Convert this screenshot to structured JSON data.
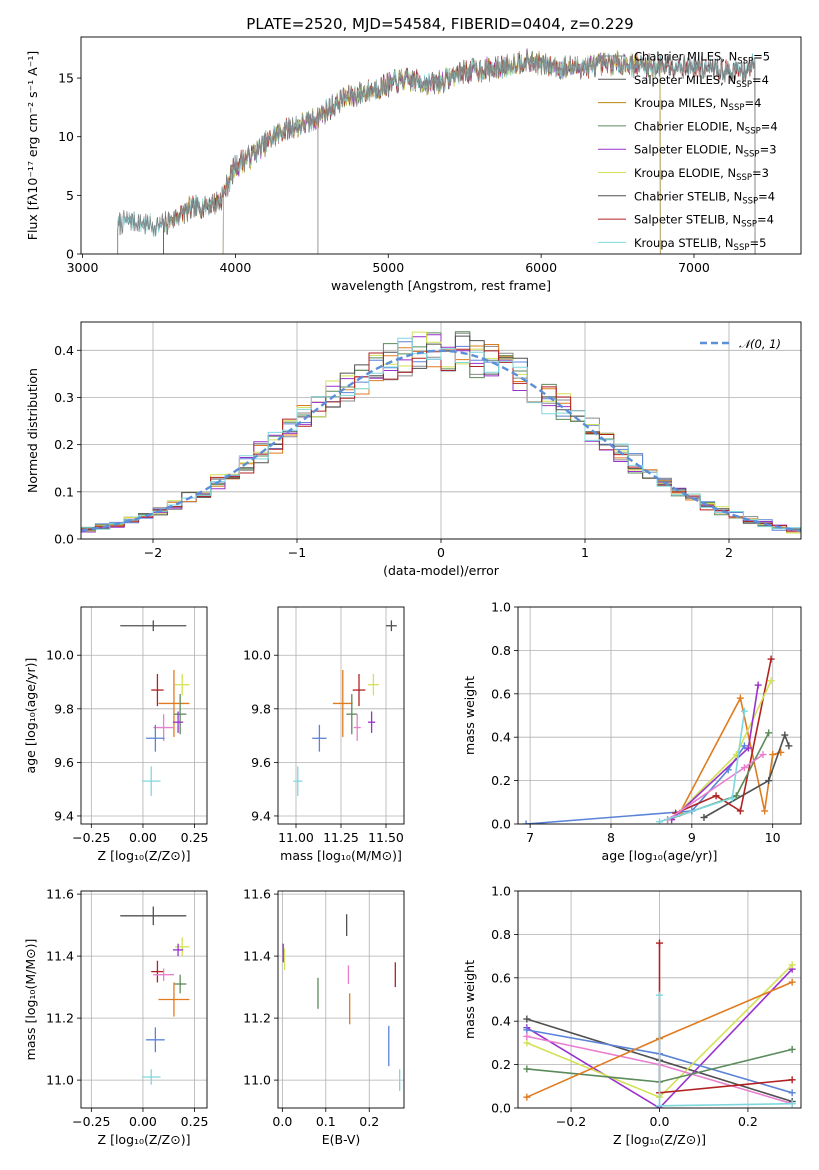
{
  "title": "PLATE=2520, MJD=54584, FIBERID=0404, z=0.229",
  "colors": {
    "Chabrier MILES": "#808080",
    "Salpeter MILES": "#555555",
    "Kroupa MILES": "#b8860b",
    "Chabrier ELODIE": "#5b8a5b",
    "Salpeter ELODIE": "#9932cc",
    "Kroupa ELODIE": "#d4e157",
    "Chabrier STELIB": "#505050",
    "Salpeter STELIB": "#b22222",
    "Kroupa STELIB": "#7fd8e0",
    "blue": "#5b84d8",
    "orange": "#e07b1f",
    "pink": "#e87fcf",
    "normal_curve": "#5b8fd8",
    "grid": "#b0b0b0"
  },
  "chart_data": [
    {
      "id": "spectrum",
      "type": "line",
      "title": "PLATE=2520, MJD=54584, FIBERID=0404, z=0.229",
      "xlabel": "wavelength [Angstrom, rest frame]",
      "ylabel": "Flux [fλ10⁻¹⁷ erg cm⁻² s⁻¹ A⁻¹]",
      "xlim": [
        2990,
        7700
      ],
      "ylim": [
        0,
        18.5
      ],
      "xticks": [
        3000,
        4000,
        5000,
        6000,
        7000
      ],
      "yticks": [
        0,
        5,
        10,
        15
      ],
      "grid": false,
      "legend_position": "top-right",
      "continuum": {
        "x": [
          3230,
          3300,
          3500,
          3700,
          3900,
          4000,
          4100,
          4300,
          4500,
          4700,
          4900,
          5100,
          5300,
          5500,
          5700,
          5900,
          6100,
          6300,
          6500,
          6700,
          6900,
          7100,
          7300,
          7400
        ],
        "y": [
          2.6,
          2.9,
          2.3,
          3.8,
          4.5,
          7.5,
          8.4,
          10.5,
          11.3,
          13.2,
          14.0,
          14.9,
          14.5,
          15.6,
          15.8,
          16.5,
          15.9,
          16.0,
          16.3,
          16.0,
          16.1,
          15.8,
          15.5,
          16.2
        ]
      },
      "series": [
        {
          "name": "Chabrier MILES, N_SSP=5",
          "label": "Chabrier MILES, N",
          "sub": "SSP",
          "tail": "=5",
          "start": 3230,
          "end": 7400
        },
        {
          "name": "Salpeter MILES, N_SSP=4",
          "label": "Salpeter MILES, N",
          "sub": "SSP",
          "tail": "=4",
          "start": 3530,
          "end": 7400
        },
        {
          "name": "Kroupa MILES, N_SSP=4",
          "label": "Kroupa MILES, N",
          "sub": "SSP",
          "tail": "=4",
          "start": 3530,
          "end": 6780
        },
        {
          "name": "Chabrier ELODIE, N_SSP=4",
          "label": "Chabrier ELODIE, N",
          "sub": "SSP",
          "tail": "=4",
          "start": 3920,
          "end": 6780
        },
        {
          "name": "Salpeter ELODIE, N_SSP=3",
          "label": "Salpeter ELODIE, N",
          "sub": "SSP",
          "tail": "=3",
          "start": 3920,
          "end": 6780
        },
        {
          "name": "Kroupa ELODIE, N_SSP=3",
          "label": "Kroupa ELODIE, N",
          "sub": "SSP",
          "tail": "=3",
          "start": 3920,
          "end": 6780
        },
        {
          "name": "Chabrier STELIB, N_SSP=4",
          "label": "Chabrier STELIB, N",
          "sub": "SSP",
          "tail": "=4",
          "start": 3230,
          "end": 7400
        },
        {
          "name": "Salpeter STELIB, N_SSP=4",
          "label": "Salpeter STELIB, N",
          "sub": "SSP",
          "tail": "=4",
          "start": 3530,
          "end": 7400
        },
        {
          "name": "Kroupa STELIB, N_SSP=5",
          "label": "Kroupa STELIB, N",
          "sub": "SSP",
          "tail": "=5",
          "start": 3230,
          "end": 7400
        }
      ]
    },
    {
      "id": "residuals",
      "type": "histogram",
      "xlabel": "(data-model)/error",
      "ylabel": "Normed distribution",
      "xlim": [
        -2.5,
        2.5
      ],
      "ylim": [
        0,
        0.46
      ],
      "xticks": [
        -2,
        -1,
        0,
        1,
        2
      ],
      "yticks": [
        0.0,
        0.1,
        0.2,
        0.3,
        0.4
      ],
      "grid": true,
      "legend_position": "top-right",
      "reference": {
        "name": "N(0,1)",
        "label": "𝒩(0, 1)",
        "mu": 0,
        "sigma": 1
      },
      "bins": {
        "start": -2.5,
        "width": 0.1,
        "count": 50
      }
    },
    {
      "id": "age_vs_Z",
      "type": "scatter",
      "xlabel": "Z [log₁₀(Z/Z⊙)]",
      "ylabel": "age  [log₁₀(age/yr)]",
      "xlim": [
        -0.3,
        0.31
      ],
      "ylim": [
        9.37,
        10.18
      ],
      "xticks": [
        -0.25,
        0.0,
        0.25
      ],
      "yticks": [
        9.4,
        9.6,
        9.8,
        10.0
      ],
      "grid": true,
      "points": [
        {
          "c": "Chabrier STELIB",
          "x": 0.05,
          "y": 10.11,
          "xe": 0.32,
          "ye": 0.04
        },
        {
          "c": "Salpeter STELIB",
          "x": 0.07,
          "y": 9.87,
          "xe": 0.06,
          "ye": 0.12
        },
        {
          "c": "Kroupa ELODIE",
          "x": 0.19,
          "y": 9.89,
          "xe": 0.07,
          "ye": 0.08
        },
        {
          "c": "orange",
          "x": 0.15,
          "y": 9.82,
          "xe": 0.15,
          "ye": 0.25
        },
        {
          "c": "Chabrier ELODIE",
          "x": 0.18,
          "y": 9.78,
          "xe": 0.06,
          "ye": 0.15
        },
        {
          "c": "Salpeter ELODIE",
          "x": 0.17,
          "y": 9.75,
          "xe": 0.05,
          "ye": 0.08
        },
        {
          "c": "pink",
          "x": 0.1,
          "y": 9.73,
          "xe": 0.1,
          "ye": 0.1
        },
        {
          "c": "blue",
          "x": 0.06,
          "y": 9.69,
          "xe": 0.09,
          "ye": 0.1
        },
        {
          "c": "Kroupa STELIB",
          "x": 0.04,
          "y": 9.53,
          "xe": 0.09,
          "ye": 0.11
        }
      ]
    },
    {
      "id": "age_vs_mass",
      "type": "scatter",
      "xlabel": "mass [log₁₀(M/M⊙)]",
      "ylabel": "",
      "xlim": [
        10.9,
        11.6
      ],
      "ylim": [
        9.37,
        10.18
      ],
      "xticks": [
        11.0,
        11.25,
        11.5
      ],
      "yticks": [
        9.4,
        9.6,
        9.8,
        10.0
      ],
      "grid": true,
      "points": [
        {
          "c": "Chabrier STELIB",
          "x": 11.53,
          "y": 10.11,
          "xe": 0.06,
          "ye": 0.04
        },
        {
          "c": "Salpeter STELIB",
          "x": 11.35,
          "y": 9.87,
          "xe": 0.07,
          "ye": 0.12
        },
        {
          "c": "Kroupa ELODIE",
          "x": 11.43,
          "y": 9.89,
          "xe": 0.06,
          "ye": 0.08
        },
        {
          "c": "orange",
          "x": 11.26,
          "y": 9.82,
          "xe": 0.11,
          "ye": 0.25
        },
        {
          "c": "Chabrier ELODIE",
          "x": 11.31,
          "y": 9.78,
          "xe": 0.06,
          "ye": 0.15
        },
        {
          "c": "Salpeter ELODIE",
          "x": 11.42,
          "y": 9.75,
          "xe": 0.04,
          "ye": 0.08
        },
        {
          "c": "pink",
          "x": 11.34,
          "y": 9.73,
          "xe": 0.04,
          "ye": 0.1
        },
        {
          "c": "blue",
          "x": 11.13,
          "y": 9.69,
          "xe": 0.08,
          "ye": 0.1
        },
        {
          "c": "Kroupa STELIB",
          "x": 11.01,
          "y": 9.53,
          "xe": 0.05,
          "ye": 0.11
        }
      ]
    },
    {
      "id": "mass_weight_vs_age",
      "type": "line",
      "xlabel": "age  [log₁₀(age/yr)]",
      "ylabel": "mass weight",
      "xlim": [
        6.85,
        10.35
      ],
      "ylim": [
        0,
        1
      ],
      "xticks": [
        7,
        8,
        9,
        10
      ],
      "yticks": [
        0.0,
        0.2,
        0.4,
        0.6,
        0.8,
        1.0
      ],
      "grid": true,
      "series": [
        {
          "c": "blue",
          "x": [
            6.95,
            9.0,
            9.45,
            9.65
          ],
          "y": [
            0.0,
            0.06,
            0.25,
            0.36
          ]
        },
        {
          "c": "orange",
          "x": [
            8.85,
            9.6,
            9.9,
            10.0,
            10.1
          ],
          "y": [
            0.05,
            0.58,
            0.06,
            0.32,
            0.33
          ]
        },
        {
          "c": "Chabrier STELIB",
          "x": [
            9.15,
            9.95,
            10.15,
            10.2
          ],
          "y": [
            0.03,
            0.2,
            0.41,
            0.36
          ]
        },
        {
          "c": "Salpeter STELIB",
          "x": [
            8.8,
            9.3,
            9.6,
            9.98
          ],
          "y": [
            0.05,
            0.13,
            0.06,
            0.76
          ]
        },
        {
          "c": "Kroupa ELODIE",
          "x": [
            8.75,
            9.55,
            9.98
          ],
          "y": [
            0.02,
            0.32,
            0.66
          ]
        },
        {
          "c": "Chabrier ELODIE",
          "x": [
            8.7,
            9.55,
            9.95
          ],
          "y": [
            0.02,
            0.13,
            0.42
          ]
        },
        {
          "c": "Salpeter ELODIE",
          "x": [
            8.75,
            9.7,
            9.82
          ],
          "y": [
            0.02,
            0.35,
            0.64
          ]
        },
        {
          "c": "pink",
          "x": [
            8.7,
            9.65,
            9.88
          ],
          "y": [
            0.02,
            0.26,
            0.32
          ]
        },
        {
          "c": "Kroupa STELIB",
          "x": [
            8.6,
            9.5,
            9.65
          ],
          "y": [
            0.01,
            0.12,
            0.52
          ]
        }
      ]
    },
    {
      "id": "mass_vs_Z",
      "type": "scatter",
      "xlabel": "Z [log₁₀(Z/Z⊙)]",
      "ylabel": "mass [log₁₀(M/M⊙)]",
      "xlim": [
        -0.3,
        0.31
      ],
      "ylim": [
        10.91,
        11.61
      ],
      "xticks": [
        -0.25,
        0.0,
        0.25
      ],
      "yticks": [
        11.0,
        11.2,
        11.4,
        11.6
      ],
      "grid": true,
      "points": [
        {
          "c": "Chabrier STELIB",
          "x": 0.05,
          "y": 11.53,
          "xe": 0.32,
          "ye": 0.06
        },
        {
          "c": "Kroupa ELODIE",
          "x": 0.19,
          "y": 11.43,
          "xe": 0.07,
          "ye": 0.06
        },
        {
          "c": "Salpeter ELODIE",
          "x": 0.17,
          "y": 11.42,
          "xe": 0.05,
          "ye": 0.04
        },
        {
          "c": "Salpeter STELIB",
          "x": 0.07,
          "y": 11.35,
          "xe": 0.06,
          "ye": 0.07
        },
        {
          "c": "pink",
          "x": 0.1,
          "y": 11.34,
          "xe": 0.1,
          "ye": 0.04
        },
        {
          "c": "Chabrier ELODIE",
          "x": 0.18,
          "y": 11.31,
          "xe": 0.06,
          "ye": 0.06
        },
        {
          "c": "orange",
          "x": 0.15,
          "y": 11.26,
          "xe": 0.15,
          "ye": 0.11
        },
        {
          "c": "blue",
          "x": 0.06,
          "y": 11.13,
          "xe": 0.09,
          "ye": 0.08
        },
        {
          "c": "Kroupa STELIB",
          "x": 0.04,
          "y": 11.01,
          "xe": 0.09,
          "ye": 0.05
        }
      ]
    },
    {
      "id": "mass_vs_EBV",
      "type": "scatter",
      "xlabel": "E(B-V)",
      "ylabel": "",
      "xlim": [
        -0.01,
        0.28
      ],
      "ylim": [
        10.91,
        11.61
      ],
      "xticks": [
        0.0,
        0.1,
        0.2
      ],
      "yticks": [
        11.0,
        11.2,
        11.4,
        11.6
      ],
      "grid": true,
      "points": [
        {
          "c": "Kroupa ELODIE",
          "x": 0.005,
          "y": 11.39,
          "xe": 0,
          "ye": 0.07
        },
        {
          "c": "Salpeter ELODIE",
          "x": 0.002,
          "y": 11.41,
          "xe": 0,
          "ye": 0.06
        },
        {
          "c": "Chabrier ELODIE",
          "x": 0.082,
          "y": 11.28,
          "xe": 0,
          "ye": 0.1
        },
        {
          "c": "Chabrier STELIB",
          "x": 0.148,
          "y": 11.5,
          "xe": 0,
          "ye": 0.07
        },
        {
          "c": "pink",
          "x": 0.152,
          "y": 11.34,
          "xe": 0,
          "ye": 0.06
        },
        {
          "c": "orange",
          "x": 0.155,
          "y": 11.23,
          "xe": 0,
          "ye": 0.1
        },
        {
          "c": "blue",
          "x": 0.245,
          "y": 11.11,
          "xe": 0,
          "ye": 0.13
        },
        {
          "c": "Salpeter STELIB",
          "x": 0.26,
          "y": 11.34,
          "xe": 0,
          "ye": 0.08
        },
        {
          "c": "Kroupa STELIB",
          "x": 0.27,
          "y": 11.0,
          "xe": 0,
          "ye": 0.07
        }
      ]
    },
    {
      "id": "mass_weight_vs_Z",
      "type": "line",
      "xlabel": "Z [log₁₀(Z/Z⊙)]",
      "ylabel": "mass weight",
      "xlim": [
        -0.32,
        0.32
      ],
      "ylim": [
        0,
        1
      ],
      "xticks": [
        -0.2,
        0.0,
        0.2
      ],
      "yticks": [
        0.0,
        0.2,
        0.4,
        0.6,
        0.8,
        1.0
      ],
      "grid": true,
      "series": [
        {
          "c": "Chabrier STELIB",
          "x": [
            -0.3,
            0.0,
            0.3
          ],
          "y": [
            0.41,
            0.22,
            0.03
          ]
        },
        {
          "c": "Salpeter ELODIE",
          "x": [
            -0.3,
            0.0,
            0.3
          ],
          "y": [
            0.37,
            0.0,
            0.64
          ]
        },
        {
          "c": "blue",
          "x": [
            -0.3,
            0.0,
            0.3
          ],
          "y": [
            0.36,
            0.25,
            0.07
          ]
        },
        {
          "c": "Kroupa ELODIE",
          "x": [
            -0.3,
            0.0,
            0.3
          ],
          "y": [
            0.3,
            0.05,
            0.66
          ]
        },
        {
          "c": "pink",
          "x": [
            -0.3,
            0.0,
            0.3
          ],
          "y": [
            0.33,
            0.2,
            0.02
          ]
        },
        {
          "c": "Chabrier ELODIE",
          "x": [
            -0.3,
            0.0,
            0.3
          ],
          "y": [
            0.18,
            0.12,
            0.27
          ]
        },
        {
          "c": "orange",
          "x": [
            -0.3,
            0.0,
            0.3
          ],
          "y": [
            0.05,
            0.32,
            0.58
          ]
        },
        {
          "c": "Salpeter STELIB",
          "x": [
            0.0,
            0.0,
            0.3
          ],
          "y": [
            0.76,
            0.07,
            0.13
          ]
        },
        {
          "c": "Kroupa STELIB",
          "x": [
            0.0,
            0.0,
            0.3
          ],
          "y": [
            0.52,
            0.01,
            0.02
          ]
        }
      ]
    }
  ]
}
